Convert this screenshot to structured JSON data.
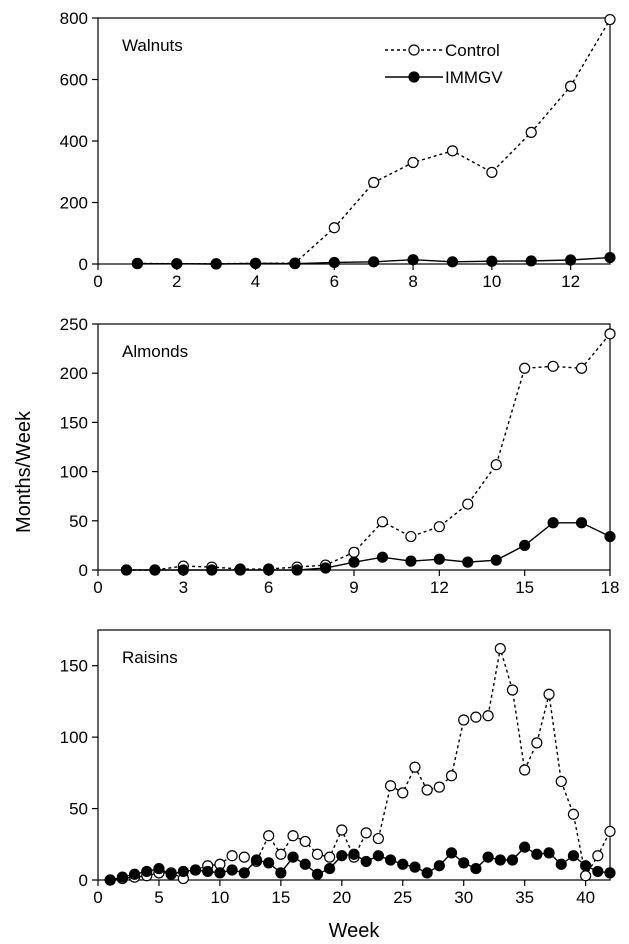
{
  "ylabel": "Months/Week",
  "xlabel": "Week",
  "legend": {
    "placement": "top-right",
    "entries": [
      "Control",
      "IMMGV"
    ]
  },
  "chart_data": [
    {
      "type": "line",
      "title": "Walnuts",
      "xlim": [
        0,
        13
      ],
      "xticks": [
        0,
        2,
        4,
        6,
        8,
        10,
        12
      ],
      "ylim": [
        0,
        800
      ],
      "yticks": [
        0,
        200,
        400,
        600,
        800
      ],
      "x": [
        1,
        2,
        3,
        4,
        5,
        6,
        7,
        8,
        9,
        10,
        11,
        12,
        13
      ],
      "series": [
        {
          "name": "Control",
          "style": "dotted-open",
          "values": [
            2,
            1,
            1,
            2,
            3,
            118,
            265,
            330,
            368,
            298,
            428,
            578,
            795
          ]
        },
        {
          "name": "IMMGV",
          "style": "solid-filled",
          "values": [
            1,
            1,
            0,
            2,
            1,
            5,
            7,
            14,
            7,
            9,
            10,
            13,
            21
          ]
        }
      ]
    },
    {
      "type": "line",
      "title": "Almonds",
      "xlim": [
        0,
        18
      ],
      "xticks": [
        0,
        3,
        6,
        9,
        12,
        15,
        18
      ],
      "ylim": [
        0,
        250
      ],
      "yticks": [
        0,
        50,
        100,
        150,
        200,
        250
      ],
      "x": [
        1,
        2,
        3,
        4,
        5,
        6,
        7,
        8,
        9,
        10,
        11,
        12,
        13,
        14,
        15,
        16,
        17,
        18
      ],
      "series": [
        {
          "name": "Control",
          "style": "dotted-open",
          "values": [
            0,
            0,
            4,
            3,
            1,
            1,
            3,
            5,
            18,
            49,
            34,
            44,
            67,
            107,
            205,
            207,
            205,
            240
          ]
        },
        {
          "name": "IMMGV",
          "style": "solid-filled",
          "values": [
            0,
            0,
            0,
            0,
            0,
            0,
            0,
            2,
            8,
            13,
            9,
            11,
            8,
            10,
            25,
            48,
            48,
            34
          ]
        }
      ]
    },
    {
      "type": "line",
      "title": "Raisins",
      "xlim": [
        0,
        42
      ],
      "xticks": [
        0,
        5,
        10,
        15,
        20,
        25,
        30,
        35,
        40
      ],
      "ylim": [
        0,
        175
      ],
      "yticks": [
        0,
        50,
        100,
        150
      ],
      "x": [
        1,
        2,
        3,
        4,
        5,
        6,
        7,
        8,
        9,
        10,
        11,
        12,
        13,
        14,
        15,
        16,
        17,
        18,
        19,
        20,
        21,
        22,
        23,
        24,
        25,
        26,
        27,
        28,
        29,
        30,
        31,
        32,
        33,
        34,
        35,
        36,
        37,
        38,
        39,
        40,
        41,
        42
      ],
      "series": [
        {
          "name": "Control",
          "style": "dotted-open",
          "values": [
            0,
            1,
            2,
            3,
            5,
            5,
            1,
            7,
            10,
            11,
            17,
            16,
            13,
            31,
            18,
            31,
            27,
            18,
            16,
            35,
            16,
            33,
            29,
            66,
            61,
            79,
            63,
            65,
            73,
            112,
            114,
            115,
            162,
            133,
            77,
            96,
            130,
            69,
            46,
            3,
            17,
            34
          ]
        },
        {
          "name": "IMMGV",
          "style": "solid-filled",
          "values": [
            0,
            2,
            4,
            6,
            8,
            4,
            6,
            7,
            6,
            5,
            7,
            5,
            14,
            12,
            5,
            16,
            11,
            4,
            8,
            17,
            18,
            13,
            17,
            14,
            11,
            9,
            5,
            10,
            19,
            12,
            8,
            16,
            14,
            14,
            23,
            18,
            19,
            11,
            17,
            10,
            6,
            5
          ]
        }
      ]
    }
  ]
}
